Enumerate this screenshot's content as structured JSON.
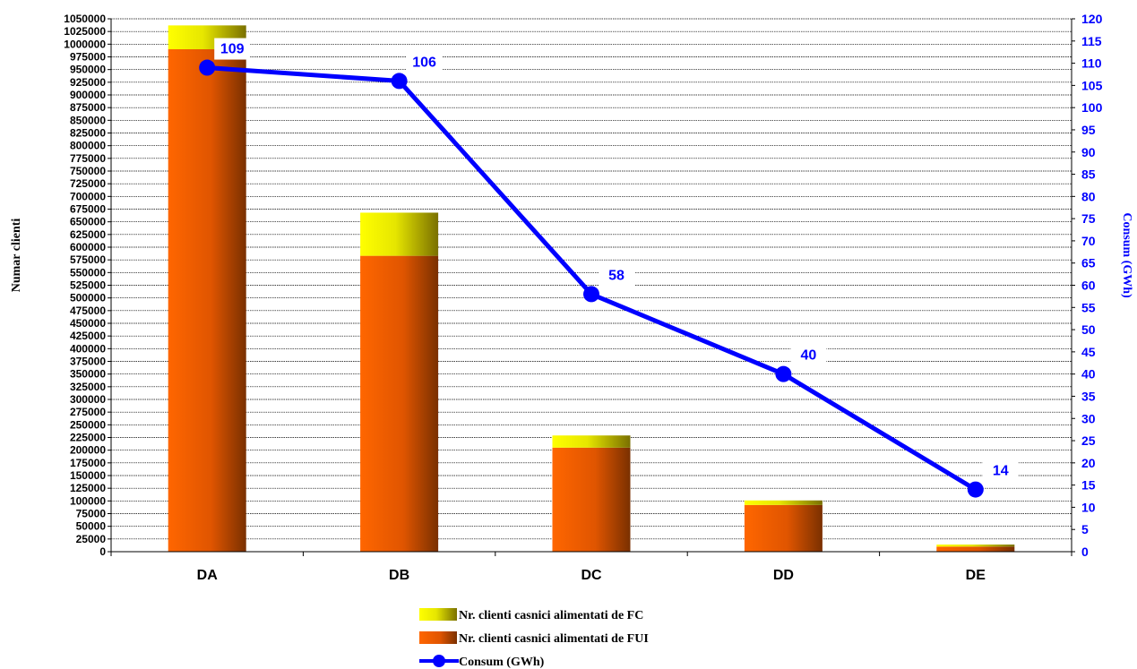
{
  "chart_data": {
    "type": "bar",
    "categories": [
      "DA",
      "DB",
      "DC",
      "DD",
      "DE"
    ],
    "ylabel": "Numar clienti",
    "y2label": "Consum (GWh)",
    "ylim": [
      0,
      1050000
    ],
    "ystep": 25000,
    "y2lim": [
      0,
      120
    ],
    "y2step": 5,
    "grid": true,
    "legend_position": "bottom",
    "series": [
      {
        "name": "Nr. clienti casnici alimentati de FUI",
        "kind": "bar-stacked",
        "axis": "left",
        "values": [
          990000,
          583000,
          205000,
          92000,
          10000
        ],
        "color": "#ff6600",
        "color_dark": "#7a3000"
      },
      {
        "name": "Nr. clienti casnici alimentati de FC",
        "kind": "bar-stacked",
        "axis": "left",
        "values": [
          47000,
          85000,
          24000,
          9000,
          4000
        ],
        "color": "#ffff00",
        "color_dark": "#7a7000"
      },
      {
        "name": "Consum (GWh)",
        "kind": "line",
        "axis": "right",
        "values": [
          109,
          106,
          58,
          40,
          14
        ],
        "labels": [
          "109",
          "106",
          "58",
          "40",
          "14"
        ],
        "color": "#0000ff"
      }
    ]
  }
}
